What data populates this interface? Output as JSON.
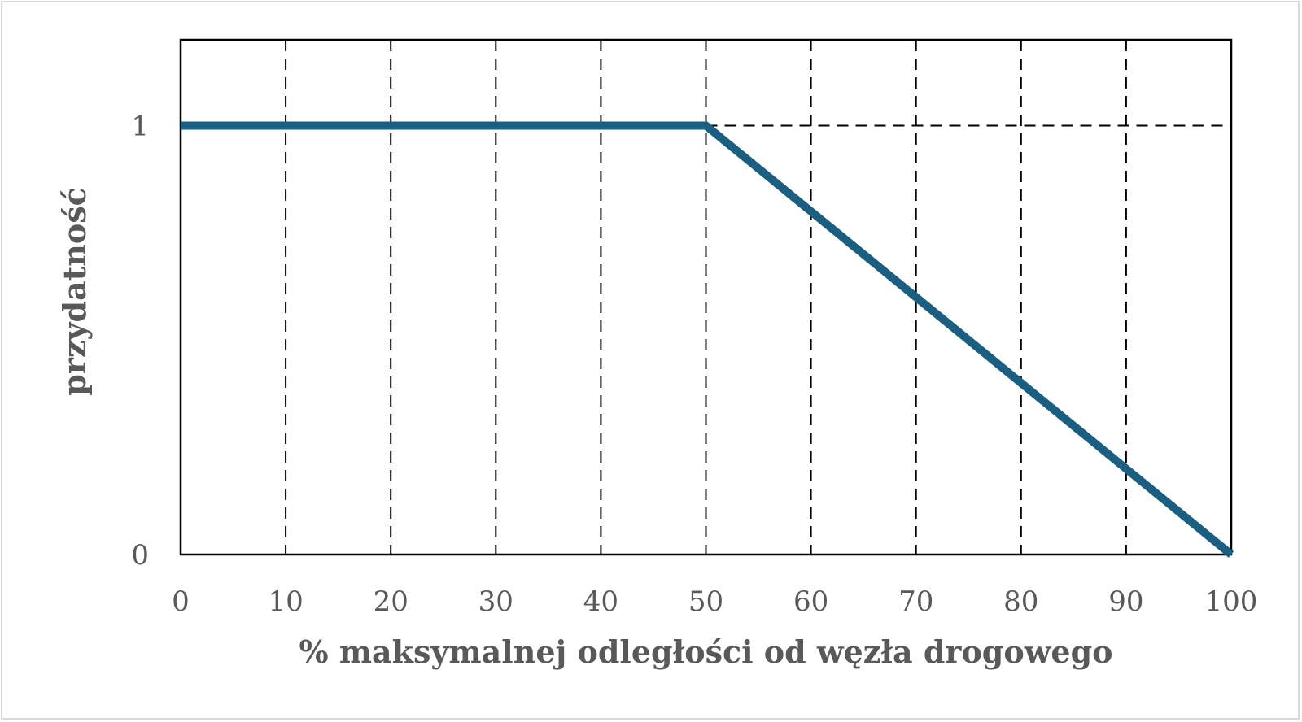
{
  "chart_data": {
    "type": "line",
    "title": "",
    "xlabel": "% maksymalnej odległości od węzła drogowego",
    "ylabel": "przydatność",
    "xlim": [
      0,
      100
    ],
    "ylim": [
      0,
      1.2
    ],
    "x_ticks": [
      0,
      10,
      20,
      30,
      40,
      50,
      60,
      70,
      80,
      90,
      100
    ],
    "x_tick_labels": [
      "0",
      "10",
      "20",
      "30",
      "40",
      "50",
      "60",
      "70",
      "80",
      "90",
      "100"
    ],
    "y_ticks": [
      0,
      1
    ],
    "y_tick_labels": [
      "0",
      "1"
    ],
    "grid": {
      "vertical_dashed_at_x": [
        10,
        20,
        30,
        40,
        50,
        60,
        70,
        80,
        90
      ],
      "horizontal_dashed_at_y": 1,
      "horizontal_dashed_from_x": 50
    },
    "series": [
      {
        "x": [
          0,
          50,
          100
        ],
        "y": [
          1,
          1,
          0
        ],
        "color": "#1a5f82"
      }
    ]
  },
  "colors": {
    "series_line": "#1a5f82",
    "axis_text": "#595959",
    "grid": "#000000",
    "frame_border": "#d9d9d9"
  }
}
